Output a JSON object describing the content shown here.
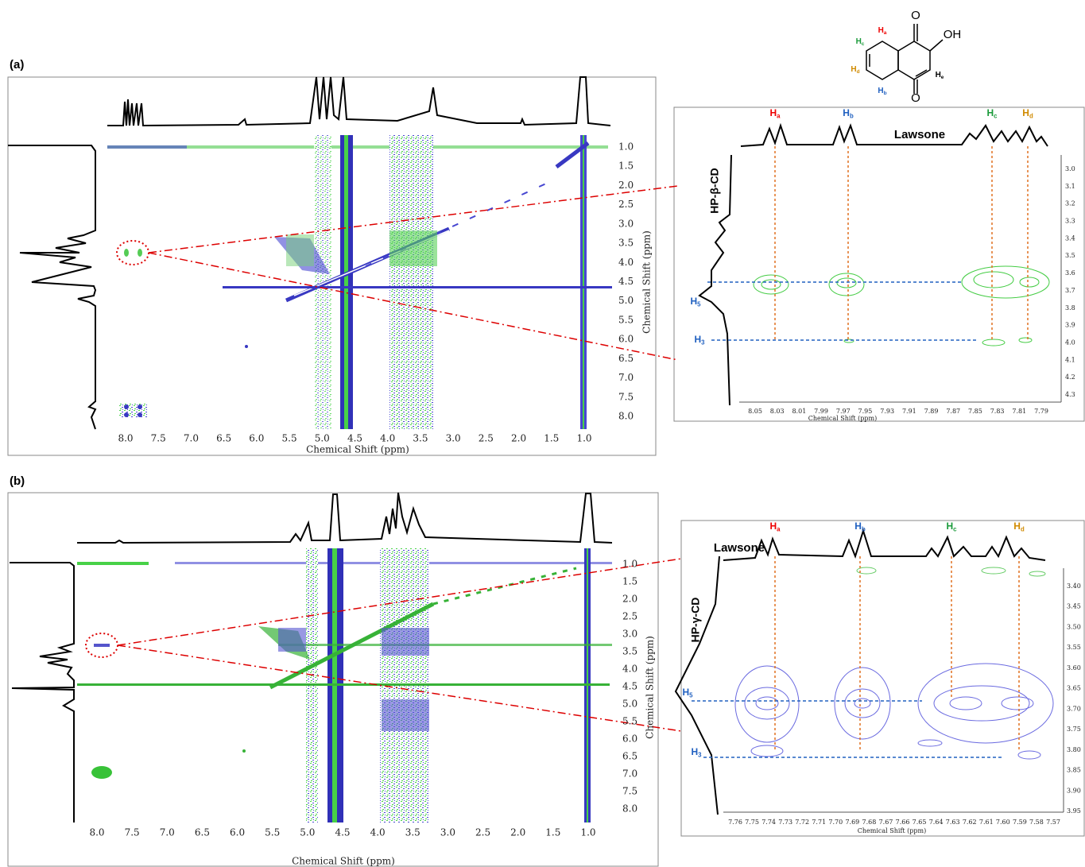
{
  "panels": [
    {
      "label": "(a)",
      "main": {
        "xticks": [
          "8.0",
          "7.5",
          "7.0",
          "6.5",
          "6.0",
          "5.5",
          "5.0",
          "4.5",
          "4.0",
          "3.5",
          "3.0",
          "2.5",
          "2.0",
          "1.5",
          "1.0"
        ],
        "yticks": [
          "1.0",
          "1.5",
          "2.0",
          "2.5",
          "3.0",
          "3.5",
          "4.0",
          "4.5",
          "5.0",
          "5.5",
          "6.0",
          "6.5",
          "7.0",
          "7.5",
          "8.0"
        ],
        "xlabel": "Chemical Shift (ppm)",
        "ylabel": "Chemical Shift (ppm)"
      },
      "inset": {
        "title": "Lawsone",
        "host": "HP-β-CD",
        "peaks": [
          {
            "letter": "H",
            "sub": "a"
          },
          {
            "letter": "H",
            "sub": "b"
          },
          {
            "letter": "H",
            "sub": "c"
          },
          {
            "letter": "H",
            "sub": "d"
          }
        ],
        "protons": [
          {
            "letter": "H",
            "sub": "5"
          },
          {
            "letter": "H",
            "sub": "3"
          }
        ],
        "xticks": [
          "8.05",
          "8.03",
          "8.01",
          "7.99",
          "7.97",
          "7.95",
          "7.93",
          "7.91",
          "7.89",
          "7.87",
          "7.85",
          "7.83",
          "7.81",
          "7.79"
        ],
        "yticks": [
          "3.0",
          "3.1",
          "3.2",
          "3.3",
          "3.4",
          "3.5",
          "3.6",
          "3.7",
          "3.8",
          "3.9",
          "4.0",
          "4.1",
          "4.2",
          "4.3"
        ],
        "xlabel": "Chemical Shift (ppm)"
      }
    },
    {
      "label": "(b)",
      "main": {
        "xticks": [
          "8.0",
          "7.5",
          "7.0",
          "6.5",
          "6.0",
          "5.5",
          "5.0",
          "4.5",
          "4.0",
          "3.5",
          "3.0",
          "2.5",
          "2.0",
          "1.5",
          "1.0"
        ],
        "yticks": [
          "1.0",
          "1.5",
          "2.0",
          "2.5",
          "3.0",
          "3.5",
          "4.0",
          "4.5",
          "5.0",
          "5.5",
          "6.0",
          "6.5",
          "7.0",
          "7.5",
          "8.0"
        ],
        "xlabel": "Chemical Shift (ppm)",
        "ylabel": "Chemical Shift (ppm)"
      },
      "inset": {
        "title": "Lawsone",
        "host": "HP-γ-CD",
        "peaks": [
          {
            "letter": "H",
            "sub": "a"
          },
          {
            "letter": "H",
            "sub": "b"
          },
          {
            "letter": "H",
            "sub": "c"
          },
          {
            "letter": "H",
            "sub": "d"
          }
        ],
        "protons": [
          {
            "letter": "H",
            "sub": "5"
          },
          {
            "letter": "H",
            "sub": "3"
          }
        ],
        "xticks": [
          "7.76",
          "7.75",
          "7.74",
          "7.73",
          "7.72",
          "7.71",
          "7.70",
          "7.69",
          "7.68",
          "7.67",
          "7.66",
          "7.65",
          "7.64",
          "7.63",
          "7.62",
          "7.61",
          "7.60",
          "7.59",
          "7.58",
          "7.57"
        ],
        "yticks": [
          "3.40",
          "3.45",
          "3.50",
          "3.55",
          "3.60",
          "3.65",
          "3.70",
          "3.75",
          "3.80",
          "3.85",
          "3.90",
          "3.95"
        ],
        "xlabel": "Chemical Shift (ppm)"
      }
    }
  ],
  "structure": {
    "oxygens": [
      "O",
      "O"
    ],
    "hydroxyl": "OH",
    "hydrogens": [
      {
        "letter": "H",
        "sub": "a"
      },
      {
        "letter": "H",
        "sub": "c"
      },
      {
        "letter": "H",
        "sub": "d"
      },
      {
        "letter": "H",
        "sub": "b"
      },
      {
        "letter": "H",
        "sub": "e"
      }
    ]
  }
}
